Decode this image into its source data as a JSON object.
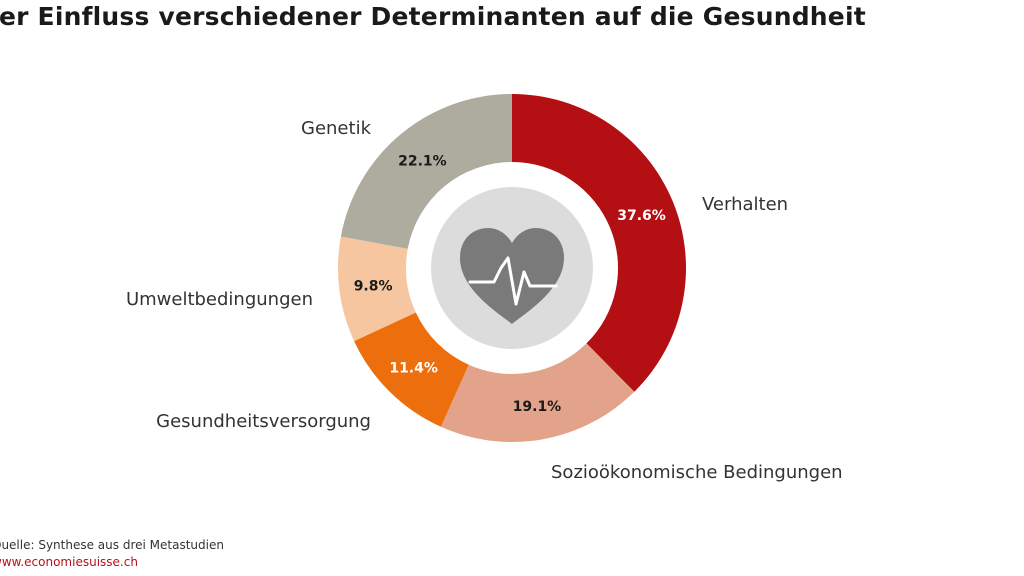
{
  "chart_data": {
    "type": "pie",
    "title": "Der Einfluss verschiedener Determinanten auf die Gesundheit",
    "slices": [
      {
        "label": "Verhalten",
        "value": 37.6,
        "display": "37.6%",
        "color": "#b40f13",
        "text_color": "#ffffff"
      },
      {
        "label": "Sozioökonomische Bedingungen",
        "value": 19.1,
        "display": "19.1%",
        "color": "#e2a38a",
        "text_color": "#1a1a1a"
      },
      {
        "label": "Gesundheitsversorgung",
        "value": 11.4,
        "display": "11.4%",
        "color": "#ec6e0c",
        "text_color": "#ffffff"
      },
      {
        "label": "Umweltbedingungen",
        "value": 9.8,
        "display": "9.8%",
        "color": "#f5c69f",
        "text_color": "#1a1a1a"
      },
      {
        "label": "Genetik",
        "value": 22.1,
        "display": "22.1%",
        "color": "#adac9e",
        "text_color": "#1a1a1a"
      }
    ],
    "center_icon": "heart-pulse-icon"
  },
  "footer": {
    "source": "Quelle: Synthese aus drei Metastudien",
    "url": "www.economiesuisse.ch"
  }
}
